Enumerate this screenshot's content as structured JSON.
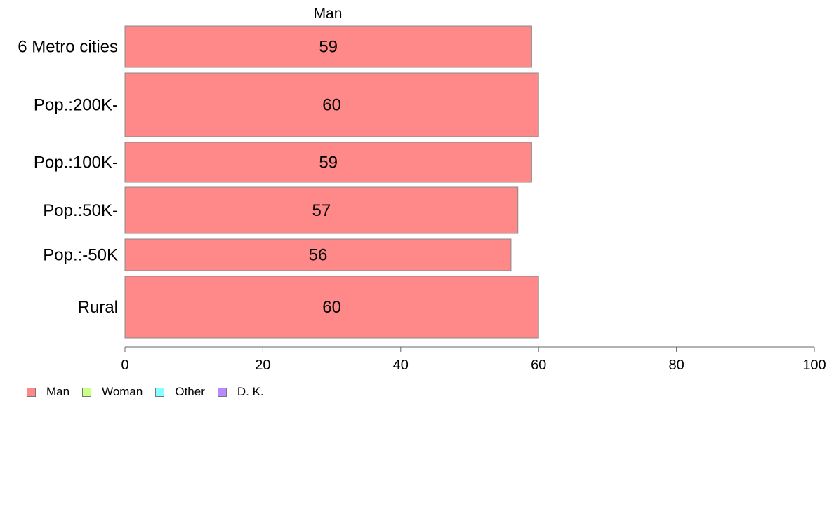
{
  "chart_data": {
    "type": "bar",
    "orientation": "horizontal",
    "title": "Man",
    "categories": [
      "6 Metro cities",
      "Pop.:200K-",
      "Pop.:100K-",
      "Pop.:50K-",
      "Pop.:-50K",
      "Rural"
    ],
    "series": [
      {
        "name": "Man",
        "values": [
          59,
          60,
          59,
          57,
          56,
          60
        ],
        "color": "#ff8888"
      }
    ],
    "data_labels": [
      "59",
      "60",
      "59",
      "57",
      "56",
      "60"
    ],
    "xlim": [
      0,
      100
    ],
    "x_ticks": [
      0,
      20,
      40,
      60,
      80,
      100
    ],
    "xlabel": "",
    "ylabel": "",
    "grid": false,
    "legend_position": "bottom-left",
    "legend": [
      {
        "label": "Man",
        "color": "#ff8888"
      },
      {
        "label": "Woman",
        "color": "#ccff88"
      },
      {
        "label": "Other",
        "color": "#88ffff"
      },
      {
        "label": "D. K.",
        "color": "#bb88ff"
      }
    ]
  }
}
